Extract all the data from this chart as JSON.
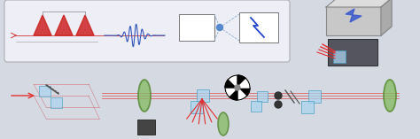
{
  "bg_color": "#d4d9e2",
  "laser_beam_color": "#e03030",
  "blue_beam_color": "#4477cc",
  "pulse_color": "#cc2222",
  "wave_color": "#3355bb",
  "lens_color_face": "#88bb66",
  "lens_color_edge": "#558833",
  "optics_face": "#aad4ee",
  "optics_edge": "#4499bb",
  "mirror_color": "#555555",
  "box_face": "#cccccc",
  "box_edge": "#888888",
  "dark_face": "#666666",
  "dark_edge": "#333333",
  "inset_face": "#f0f0f8",
  "inset_edge": "#aaaaaa"
}
